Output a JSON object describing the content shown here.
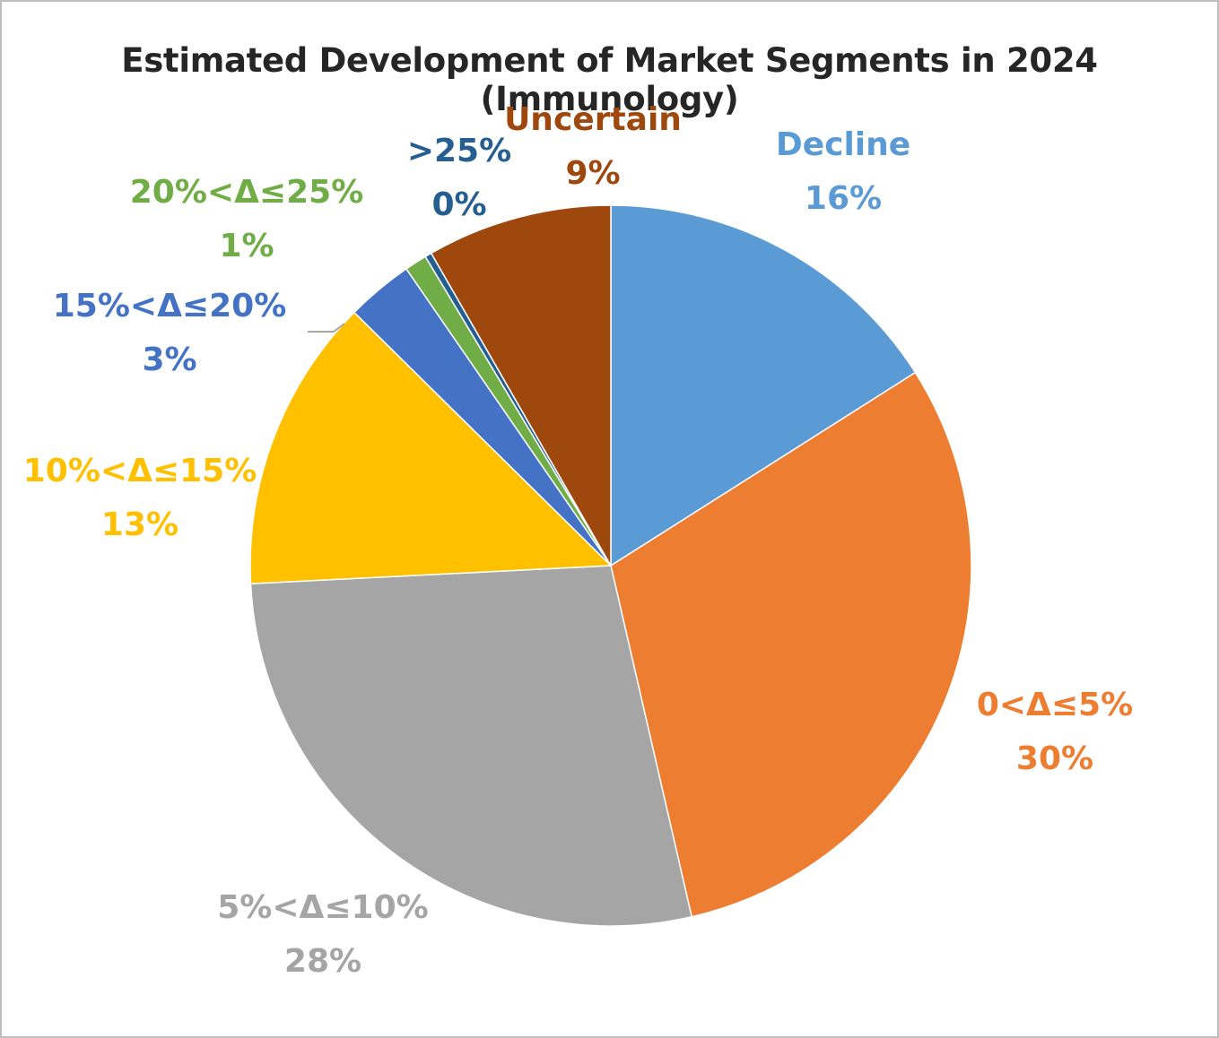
{
  "chart_data": {
    "type": "pie",
    "title": "Estimated Development of Market Segments in 2024 (Immunology)",
    "start_angle_deg": 0,
    "direction": "clockwise",
    "legend": "none (data labels on slices)",
    "slices": [
      {
        "label": "Decline",
        "percent_label": "16%",
        "value": 16.0,
        "color": "#5b9bd5",
        "label_color": "#5b9bd5"
      },
      {
        "label": "0<Δ≤5%",
        "percent_label": "30%",
        "value": 30.4,
        "color": "#ed7d31",
        "label_color": "#ed7d31"
      },
      {
        "label": "5%<Δ≤10%",
        "percent_label": "28%",
        "value": 27.8,
        "color": "#a5a5a5",
        "label_color": "#a5a5a5"
      },
      {
        "label": "10%<Δ≤15%",
        "percent_label": "13%",
        "value": 13.2,
        "color": "#ffc000",
        "label_color": "#ffc000"
      },
      {
        "label": "15%<Δ≤20%",
        "percent_label": "3%",
        "value": 3.0,
        "color": "#4472c4",
        "label_color": "#4472c4"
      },
      {
        "label": "20%<Δ≤25%",
        "percent_label": "1%",
        "value": 1.0,
        "color": "#70ad47",
        "label_color": "#70ad47"
      },
      {
        "label": ">25%",
        "percent_label": "0%",
        "value": 0.3,
        "color": "#255e91",
        "label_color": "#255e91"
      },
      {
        "label": "Uncertain",
        "percent_label": "9%",
        "value": 8.3,
        "color": "#9e480e",
        "label_color": "#9e480e"
      }
    ]
  }
}
